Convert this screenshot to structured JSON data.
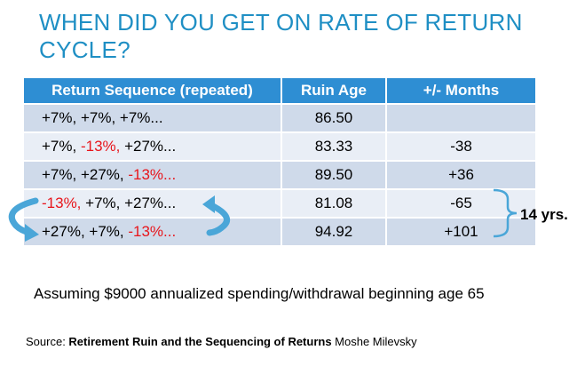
{
  "title": "WHEN DID YOU GET ON RATE OF RETURN CYCLE?",
  "table": {
    "headers": [
      "Return Sequence (repeated)",
      "Ruin Age",
      "+/- Months"
    ],
    "rows": [
      {
        "seq": [
          {
            "t": "+7%, ",
            "c": "black"
          },
          {
            "t": "+7%, ",
            "c": "black"
          },
          {
            "t": "+7%...",
            "c": "black"
          }
        ],
        "ruin_age": "86.50",
        "months": ""
      },
      {
        "seq": [
          {
            "t": "+7%, ",
            "c": "black"
          },
          {
            "t": "-13%, ",
            "c": "red"
          },
          {
            "t": "+27%...",
            "c": "black"
          }
        ],
        "ruin_age": "83.33",
        "months": "-38"
      },
      {
        "seq": [
          {
            "t": "+7%, ",
            "c": "black"
          },
          {
            "t": "+27%, ",
            "c": "black"
          },
          {
            "t": "-13%...",
            "c": "red"
          }
        ],
        "ruin_age": "89.50",
        "months": "+36"
      },
      {
        "seq": [
          {
            "t": "-13%, ",
            "c": "red"
          },
          {
            "t": "+7%, ",
            "c": "black"
          },
          {
            "t": "+27%...",
            "c": "black"
          }
        ],
        "ruin_age": "81.08",
        "months": "-65"
      },
      {
        "seq": [
          {
            "t": "+27%, ",
            "c": "black"
          },
          {
            "t": "+7%, ",
            "c": "black"
          },
          {
            "t": "-13%...",
            "c": "red"
          }
        ],
        "ruin_age": "94.92",
        "months": "+101"
      }
    ]
  },
  "brace_label": "14 yrs.",
  "note": "Assuming $9000 annualized spending/withdrawal beginning age 65",
  "source": {
    "prefix": "Source: ",
    "title": "Retirement Ruin and the Sequencing of Returns",
    "author": " Moshe Milevsky"
  },
  "colors": {
    "title": "#1f8fc4",
    "header_bg": "#2e8ed3",
    "row_dark": "#cfdaea",
    "row_light": "#e9eef6",
    "negative": "#e8151b",
    "arrow": "#4aa6d8"
  }
}
